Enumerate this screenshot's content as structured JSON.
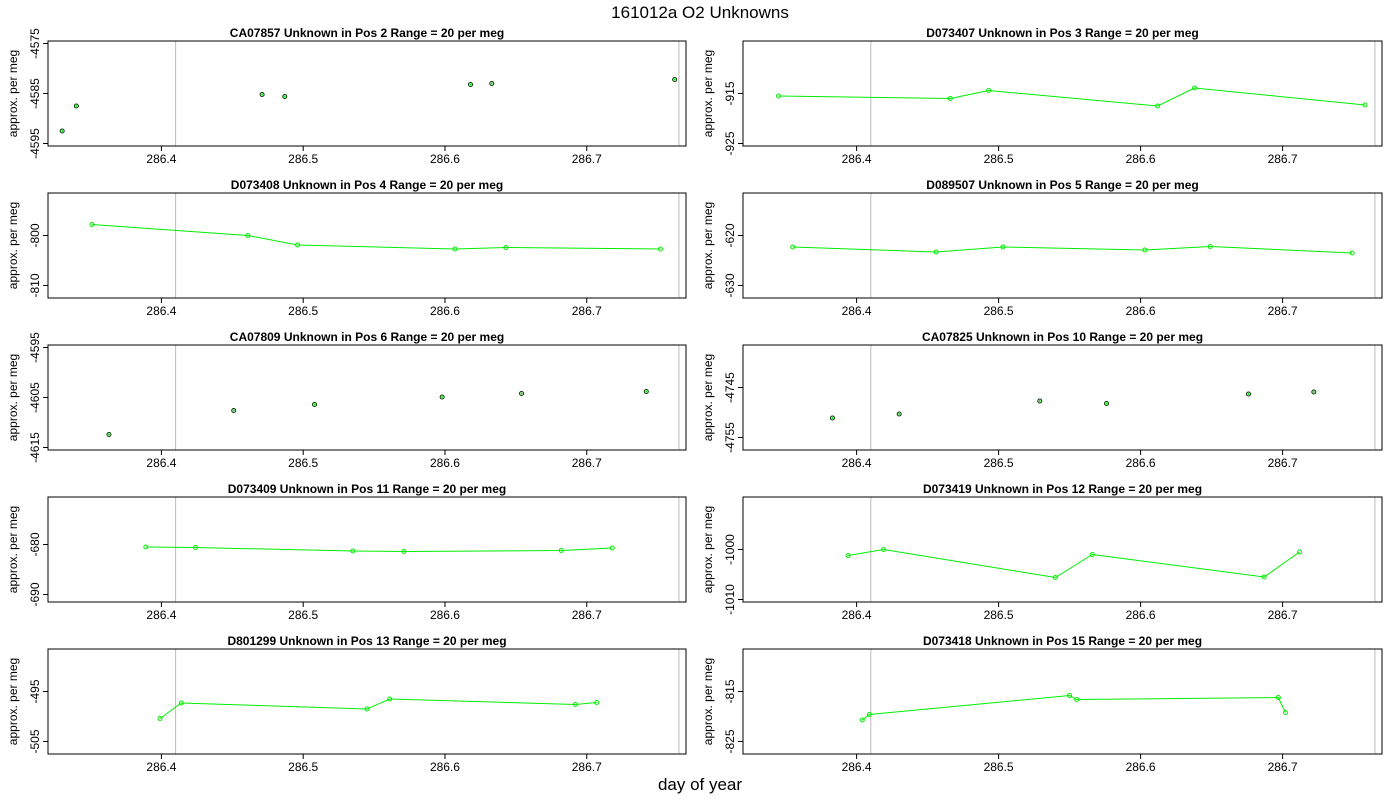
{
  "title": "161012a  O2 Unknowns",
  "xlabel": "day of year",
  "colors": {
    "line": "#00ee00",
    "marker_edge_dark": "#003300",
    "vline": "#bbbbbb",
    "axis": "#000000"
  },
  "chart_data": [
    {
      "type": "scatter",
      "title": "CA07857    Unknown in Pos 2          Range = 20 per meg",
      "ylabel": "approx. per meg",
      "connected": false,
      "xlim": [
        286.32,
        286.77
      ],
      "ylim": [
        -4595.5,
        -4574.5
      ],
      "xticks": [
        286.4,
        286.5,
        286.6,
        286.7
      ],
      "xtick_labels": [
        "286.4",
        "286.5",
        "286.6",
        "286.7"
      ],
      "yticks": [
        -4595,
        -4585,
        -4575
      ],
      "ytick_labels": [
        "-4595",
        "-4585",
        "-4575"
      ],
      "vlines": [
        286.41,
        286.765
      ],
      "x": [
        286.33,
        286.34,
        286.471,
        286.487,
        286.618,
        286.633,
        286.762
      ],
      "y": [
        -4592.5,
        -4587.5,
        -4585.2,
        -4585.6,
        -4583.2,
        -4583.0,
        -4582.2
      ]
    },
    {
      "type": "line",
      "title": "D073407    Unknown in Pos 3          Range = 20 per meg",
      "ylabel": "approx. per meg",
      "connected": true,
      "xlim": [
        286.32,
        286.77
      ],
      "ylim": [
        -925.5,
        -904.5
      ],
      "xticks": [
        286.4,
        286.5,
        286.6,
        286.7
      ],
      "xtick_labels": [
        "286.4",
        "286.5",
        "286.6",
        "286.7"
      ],
      "yticks": [
        -925,
        -915
      ],
      "ytick_labels": [
        "-925",
        "-915"
      ],
      "vlines": [
        286.41,
        286.765
      ],
      "x": [
        286.345,
        286.466,
        286.493,
        286.612,
        286.638,
        286.758
      ],
      "y": [
        -915.5,
        -916.0,
        -914.4,
        -917.5,
        -913.9,
        -917.3
      ]
    },
    {
      "type": "line",
      "title": "D073408    Unknown in Pos 4          Range = 20 per meg",
      "ylabel": "approx. per meg",
      "connected": true,
      "xlim": [
        286.32,
        286.77
      ],
      "ylim": [
        -812.5,
        -791.5
      ],
      "xticks": [
        286.4,
        286.5,
        286.6,
        286.7
      ],
      "xtick_labels": [
        "286.4",
        "286.5",
        "286.6",
        "286.7"
      ],
      "yticks": [
        -810,
        -800
      ],
      "ytick_labels": [
        "-810",
        "-800"
      ],
      "vlines": [
        286.41,
        286.765
      ],
      "x": [
        286.351,
        286.461,
        286.496,
        286.607,
        286.643,
        286.752
      ],
      "y": [
        -797.8,
        -800.0,
        -801.9,
        -802.7,
        -802.4,
        -802.7
      ]
    },
    {
      "type": "line",
      "title": "D089507    Unknown in Pos 5          Range = 20 per meg",
      "ylabel": "approx. per meg",
      "connected": true,
      "xlim": [
        286.32,
        286.77
      ],
      "ylim": [
        -632.5,
        -611.5
      ],
      "xticks": [
        286.4,
        286.5,
        286.6,
        286.7
      ],
      "xtick_labels": [
        "286.4",
        "286.5",
        "286.6",
        "286.7"
      ],
      "yticks": [
        -630,
        -620
      ],
      "ytick_labels": [
        "-630",
        "-620"
      ],
      "vlines": [
        286.41,
        286.765
      ],
      "x": [
        286.355,
        286.456,
        286.503,
        286.603,
        286.649,
        286.749
      ],
      "y": [
        -622.3,
        -623.3,
        -622.3,
        -622.9,
        -622.2,
        -623.5
      ]
    },
    {
      "type": "scatter",
      "title": "CA07809    Unknown in Pos 6          Range = 20 per meg",
      "ylabel": "approx. per meg",
      "connected": false,
      "xlim": [
        286.32,
        286.77
      ],
      "ylim": [
        -4615.5,
        -4594.5
      ],
      "xticks": [
        286.4,
        286.5,
        286.6,
        286.7
      ],
      "xtick_labels": [
        "286.4",
        "286.5",
        "286.6",
        "286.7"
      ],
      "yticks": [
        -4615,
        -4605,
        -4595
      ],
      "ytick_labels": [
        "-4615",
        "-4605",
        "-4595"
      ],
      "vlines": [
        286.41,
        286.765
      ],
      "x": [
        286.363,
        286.451,
        286.508,
        286.598,
        286.654,
        286.742
      ],
      "y": [
        -4612.4,
        -4607.6,
        -4606.4,
        -4604.9,
        -4604.2,
        -4603.8
      ]
    },
    {
      "type": "scatter",
      "title": "CA07825    Unknown in Pos 10          Range = 20 per meg",
      "ylabel": "approx. per meg",
      "connected": false,
      "xlim": [
        286.32,
        286.77
      ],
      "ylim": [
        -4757.5,
        -4736.5
      ],
      "xticks": [
        286.4,
        286.5,
        286.6,
        286.7
      ],
      "xtick_labels": [
        "286.4",
        "286.5",
        "286.6",
        "286.7"
      ],
      "yticks": [
        -4755,
        -4745
      ],
      "ytick_labels": [
        "-4755",
        "-4745"
      ],
      "vlines": [
        286.41,
        286.765
      ],
      "x": [
        286.383,
        286.43,
        286.529,
        286.576,
        286.676,
        286.722
      ],
      "y": [
        -4751.1,
        -4750.3,
        -4747.7,
        -4748.2,
        -4746.3,
        -4745.9
      ]
    },
    {
      "type": "line",
      "title": "D073409    Unknown in Pos 11          Range = 20 per meg",
      "ylabel": "approx. per meg",
      "connected": true,
      "xlim": [
        286.32,
        286.77
      ],
      "ylim": [
        -691.5,
        -670.5
      ],
      "xticks": [
        286.4,
        286.5,
        286.6,
        286.7
      ],
      "xtick_labels": [
        "286.4",
        "286.5",
        "286.6",
        "286.7"
      ],
      "yticks": [
        -690,
        -680
      ],
      "ytick_labels": [
        "-690",
        "-680"
      ],
      "vlines": [
        286.41,
        286.765
      ],
      "x": [
        286.389,
        286.424,
        286.535,
        286.571,
        286.682,
        286.718
      ],
      "y": [
        -680.5,
        -680.6,
        -681.3,
        -681.4,
        -681.2,
        -680.7
      ]
    },
    {
      "type": "line",
      "title": "D073419    Unknown in Pos 12          Range = 20 per meg",
      "ylabel": "approx. per meg",
      "connected": true,
      "xlim": [
        286.32,
        286.77
      ],
      "ylim": [
        -1010.5,
        -989.5
      ],
      "xticks": [
        286.4,
        286.5,
        286.6,
        286.7
      ],
      "xtick_labels": [
        "286.4",
        "286.5",
        "286.6",
        "286.7"
      ],
      "yticks": [
        -1010,
        -1000
      ],
      "ytick_labels": [
        "-1010",
        "-1000"
      ],
      "vlines": [
        286.41,
        286.765
      ],
      "x": [
        286.394,
        286.419,
        286.54,
        286.566,
        286.687,
        286.712
      ],
      "y": [
        -1001.2,
        -1000.0,
        -1005.6,
        -1001.0,
        -1005.5,
        -1000.5
      ]
    },
    {
      "type": "line",
      "title": "D801299    Unknown in Pos 13          Range = 20 per meg",
      "ylabel": "approx. per meg",
      "connected": true,
      "xlim": [
        286.32,
        286.77
      ],
      "ylim": [
        -507.5,
        -486.5
      ],
      "xticks": [
        286.4,
        286.5,
        286.6,
        286.7
      ],
      "xtick_labels": [
        "286.4",
        "286.5",
        "286.6",
        "286.7"
      ],
      "yticks": [
        -505,
        -495
      ],
      "ytick_labels": [
        "-505",
        "-495"
      ],
      "vlines": [
        286.41,
        286.765
      ],
      "x": [
        286.399,
        286.414,
        286.545,
        286.561,
        286.692,
        286.707
      ],
      "y": [
        -500.4,
        -497.3,
        -498.5,
        -496.5,
        -497.6,
        -497.2
      ]
    },
    {
      "type": "line",
      "title": "D073418    Unknown in Pos 15          Range = 20 per meg",
      "ylabel": "approx. per meg",
      "connected": true,
      "xlim": [
        286.32,
        286.77
      ],
      "ylim": [
        -827.5,
        -806.5
      ],
      "xticks": [
        286.4,
        286.5,
        286.6,
        286.7
      ],
      "xtick_labels": [
        "286.4",
        "286.5",
        "286.6",
        "286.7"
      ],
      "yticks": [
        -825,
        -815
      ],
      "ytick_labels": [
        "-825",
        "-815"
      ],
      "vlines": [
        286.41,
        286.765
      ],
      "x": [
        286.404,
        286.409,
        286.55,
        286.555,
        286.697,
        286.702
      ],
      "y": [
        -820.7,
        -819.6,
        -815.8,
        -816.6,
        -816.2,
        -819.2
      ]
    }
  ]
}
